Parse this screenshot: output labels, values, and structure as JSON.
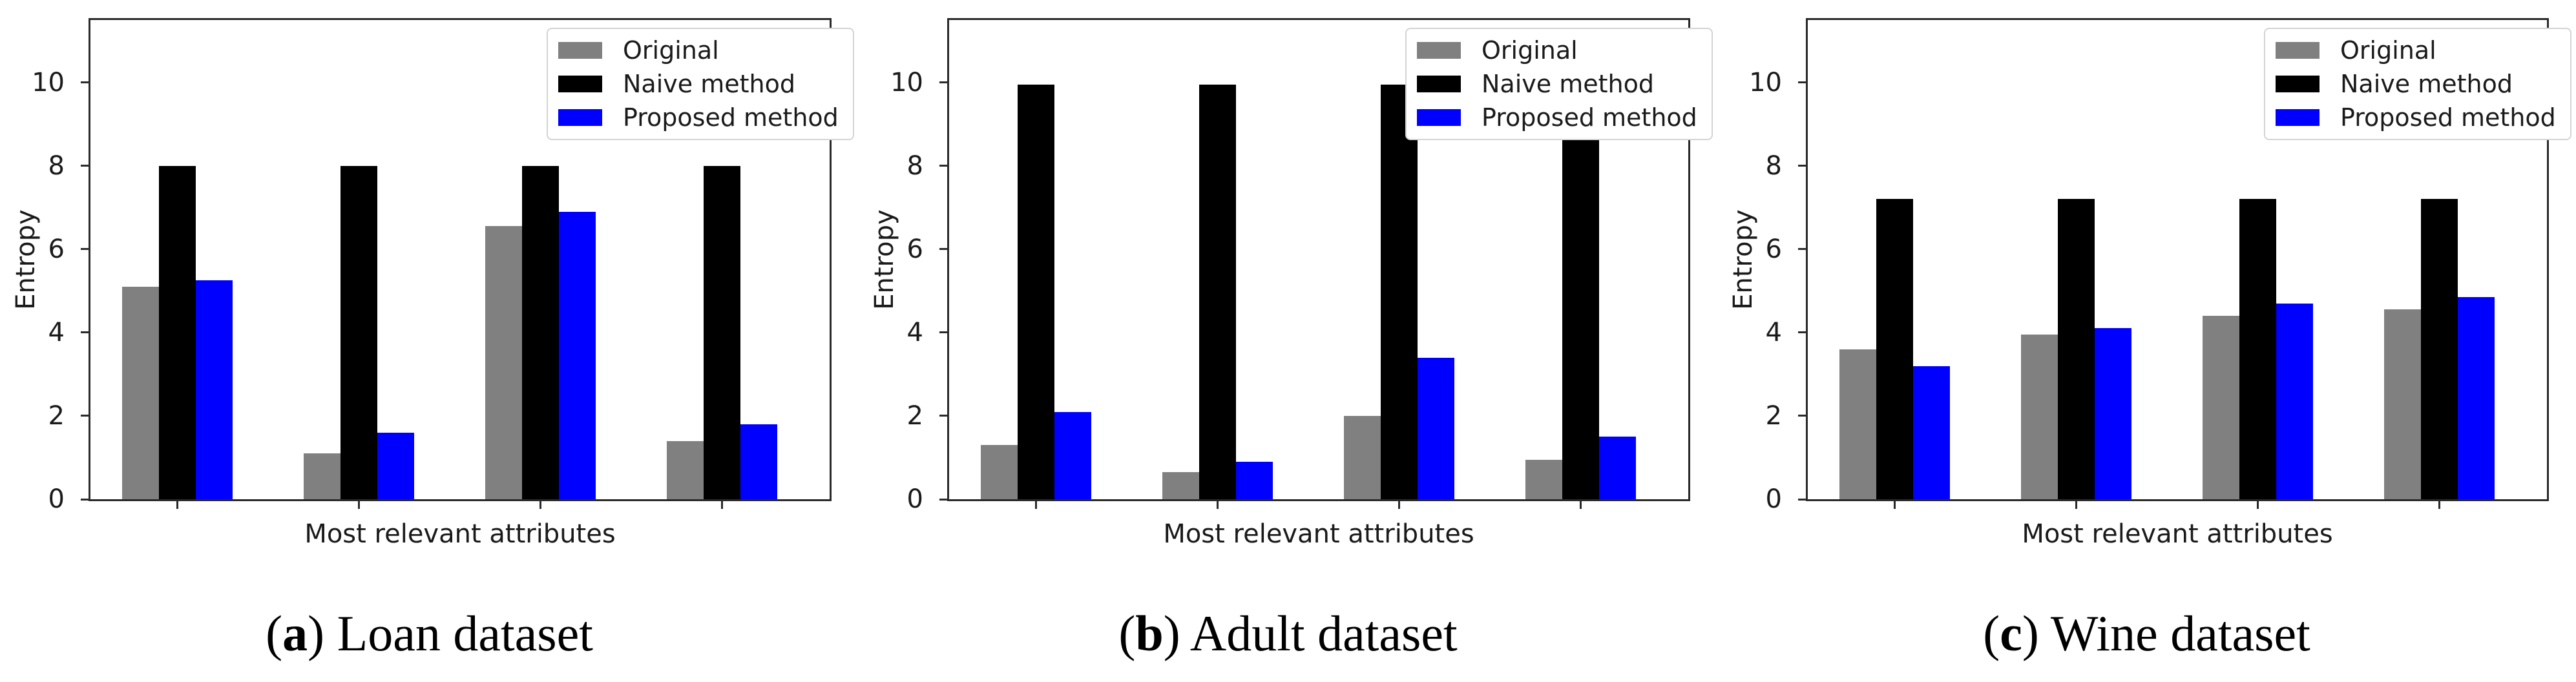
{
  "figure": {
    "background": "#ffffff",
    "axis_color": "#2a2a2a",
    "text_color": "#1a1a1a"
  },
  "chart_data": [
    {
      "type": "bar",
      "caption": {
        "open": "(",
        "letter": "a",
        "close": ") ",
        "text": "Loan dataset"
      },
      "xlabel": "Most relevant attributes",
      "ylabel": "Entropy",
      "ylim": [
        0,
        11.5
      ],
      "yticks": [
        0,
        2,
        4,
        6,
        8,
        10
      ],
      "categories": [
        "",
        "",
        "",
        ""
      ],
      "grid": false,
      "legend_position": "upper right",
      "series": [
        {
          "name": "Original",
          "color": "#808080",
          "values": [
            5.1,
            1.1,
            6.55,
            1.4
          ]
        },
        {
          "name": "Naive method",
          "color": "#000000",
          "values": [
            8.0,
            8.0,
            8.0,
            8.0
          ]
        },
        {
          "name": "Proposed method",
          "color": "#0000ff",
          "values": [
            5.25,
            1.6,
            6.9,
            1.8
          ]
        }
      ]
    },
    {
      "type": "bar",
      "caption": {
        "open": "(",
        "letter": "b",
        "close": ") ",
        "text": "Adult dataset"
      },
      "xlabel": "Most relevant attributes",
      "ylabel": "Entropy",
      "ylim": [
        0,
        11.5
      ],
      "yticks": [
        0,
        2,
        4,
        6,
        8,
        10
      ],
      "categories": [
        "",
        "",
        "",
        ""
      ],
      "grid": false,
      "legend_position": "upper right",
      "series": [
        {
          "name": "Original",
          "color": "#808080",
          "values": [
            1.3,
            0.65,
            2.0,
            0.95
          ]
        },
        {
          "name": "Naive method",
          "color": "#000000",
          "values": [
            9.95,
            9.95,
            9.95,
            9.95
          ]
        },
        {
          "name": "Proposed method",
          "color": "#0000ff",
          "values": [
            2.1,
            0.9,
            3.4,
            1.5
          ]
        }
      ]
    },
    {
      "type": "bar",
      "caption": {
        "open": "(",
        "letter": "c",
        "close": ") ",
        "text": "Wine dataset"
      },
      "xlabel": "Most relevant attributes",
      "ylabel": "Entropy",
      "ylim": [
        0,
        11.5
      ],
      "yticks": [
        0,
        2,
        4,
        6,
        8,
        10
      ],
      "categories": [
        "",
        "",
        "",
        ""
      ],
      "grid": false,
      "legend_position": "upper right",
      "series": [
        {
          "name": "Original",
          "color": "#808080",
          "values": [
            3.6,
            3.95,
            4.4,
            4.55
          ]
        },
        {
          "name": "Naive method",
          "color": "#000000",
          "values": [
            7.2,
            7.2,
            7.2,
            7.2
          ]
        },
        {
          "name": "Proposed method",
          "color": "#0000ff",
          "values": [
            3.2,
            4.1,
            4.7,
            4.85
          ]
        }
      ]
    }
  ]
}
